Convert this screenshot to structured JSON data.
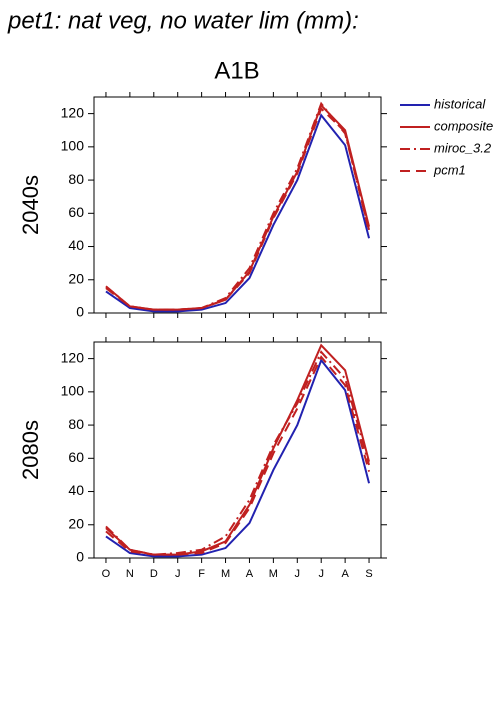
{
  "chart_data": {
    "type": "line",
    "title": "pet1: nat veg, no water lim (mm):",
    "subtitle": "A1B",
    "categories": [
      "O",
      "N",
      "D",
      "J",
      "F",
      "M",
      "A",
      "M",
      "J",
      "J",
      "A",
      "S"
    ],
    "ylim": [
      0,
      130
    ],
    "yticks": [
      0,
      20,
      40,
      60,
      80,
      100,
      120
    ],
    "series": [
      {
        "name": "historical",
        "color": "#2222b0",
        "dash": "solid"
      },
      {
        "name": "composite",
        "color": "#c02020",
        "dash": "solid"
      },
      {
        "name": "miroc_3.2",
        "color": "#c02020",
        "dash": "dash-dot"
      },
      {
        "name": "pcm1",
        "color": "#c02020",
        "dash": "dashed"
      }
    ],
    "panels": [
      {
        "label": "2040s",
        "values": [
          [
            13,
            3,
            1,
            1,
            2,
            6,
            21,
            53,
            80,
            119,
            101,
            45
          ],
          [
            16,
            4,
            2,
            2,
            3,
            8,
            25,
            58,
            85,
            125,
            110,
            52
          ],
          [
            16,
            4,
            2,
            2,
            3,
            9,
            27,
            60,
            87,
            126,
            108,
            50
          ],
          [
            15,
            4,
            2,
            2,
            3,
            8,
            24,
            57,
            84,
            123,
            109,
            49
          ]
        ]
      },
      {
        "label": "2080s",
        "values": [
          [
            13,
            3,
            1,
            1,
            2,
            6,
            21,
            53,
            80,
            119,
            101,
            45
          ],
          [
            18,
            5,
            2,
            2,
            4,
            10,
            32,
            66,
            95,
            128,
            113,
            58
          ],
          [
            19,
            5,
            2,
            3,
            5,
            13,
            35,
            68,
            93,
            124,
            108,
            56
          ],
          [
            16,
            4,
            2,
            2,
            3,
            9,
            30,
            63,
            90,
            121,
            104,
            52
          ]
        ]
      }
    ]
  }
}
